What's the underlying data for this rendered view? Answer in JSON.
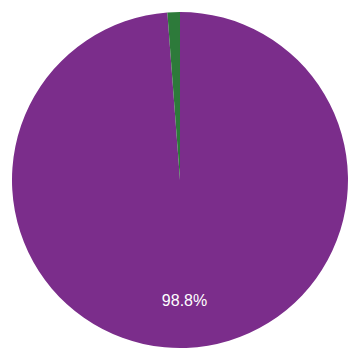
{
  "chart_data": {
    "type": "pie",
    "values": [
      98.8,
      1.2
    ],
    "value_labels": [
      "98.8%",
      null
    ],
    "data_labels": true,
    "colors": [
      "#7b2d8b",
      "#2d7a3a"
    ]
  }
}
